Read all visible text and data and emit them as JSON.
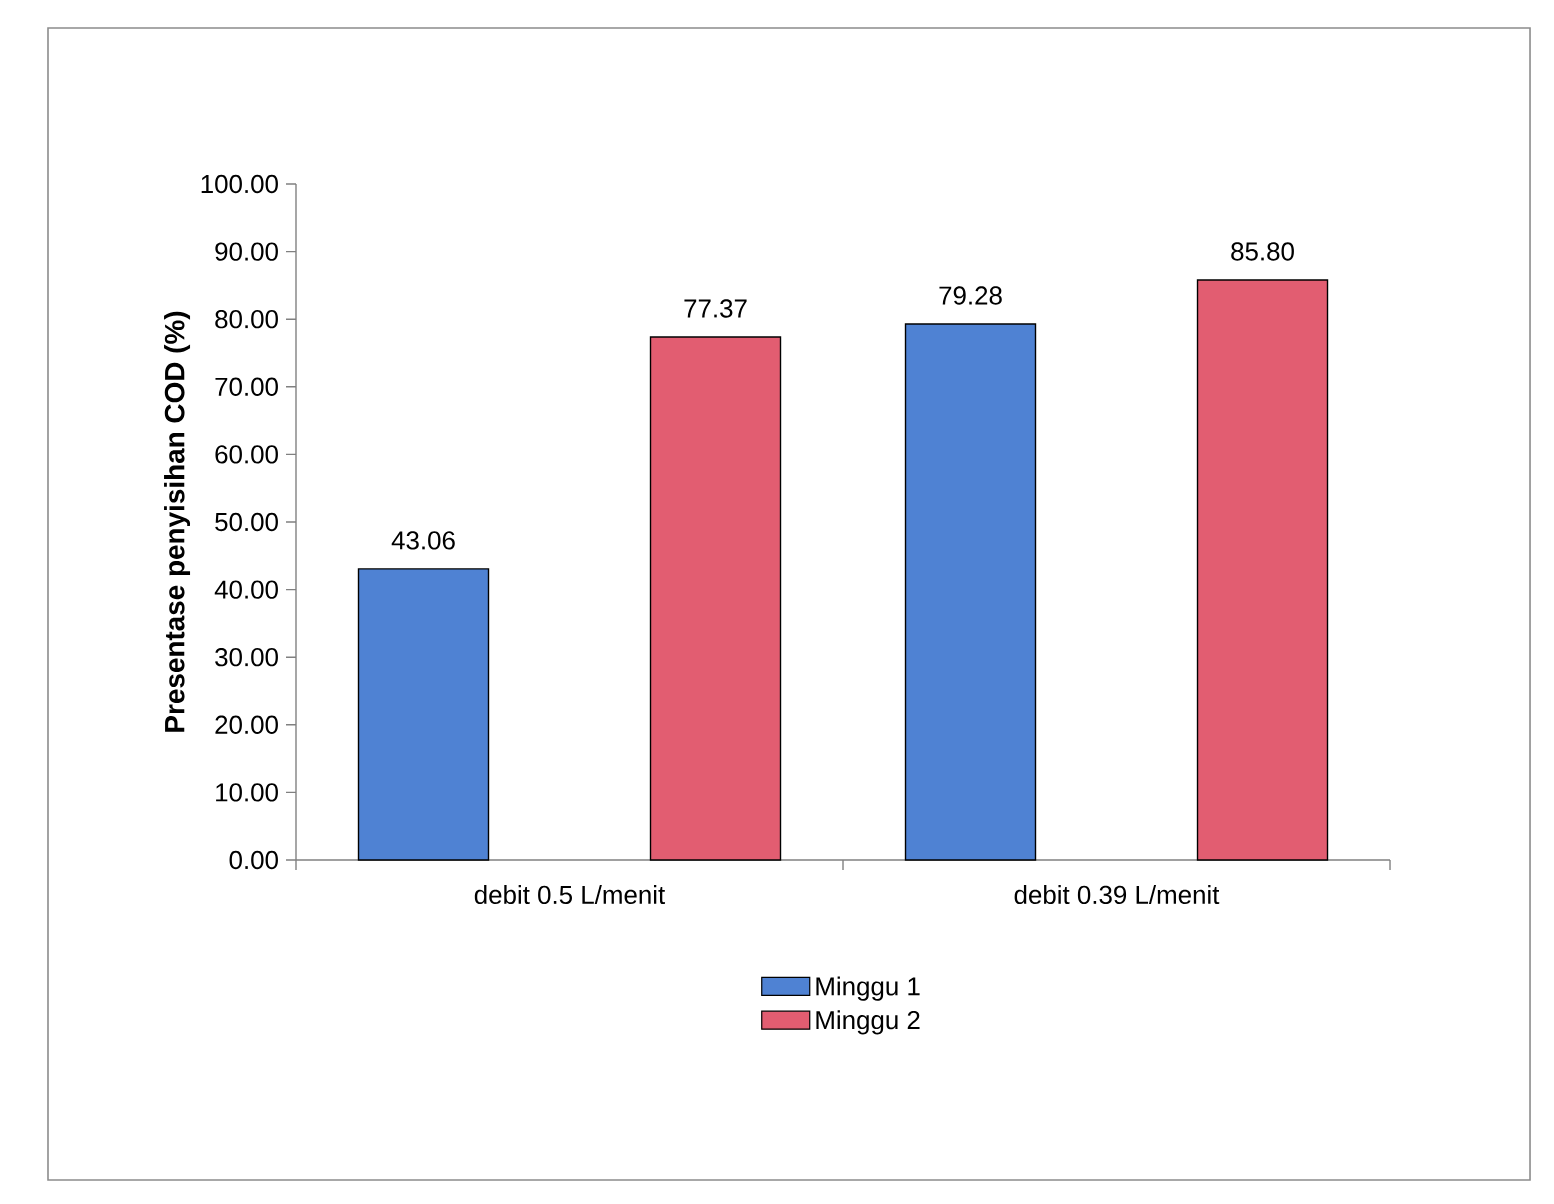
{
  "chart_data": {
    "type": "bar",
    "ylabel": "Presentase penyisihan COD (%)",
    "categories": [
      "debit 0.5 L/menit",
      "debit 0.39 L/menit"
    ],
    "series": [
      {
        "name": "Minggu 1",
        "color": "#4f82d3",
        "values": [
          43.06,
          79.28
        ],
        "value_labels": [
          "43.06",
          "79.28"
        ]
      },
      {
        "name": "Minggu 2",
        "color": "#e25d71",
        "values": [
          77.37,
          85.8
        ],
        "value_labels": [
          "77.37",
          "85.80"
        ]
      }
    ],
    "ylim": [
      0,
      100
    ],
    "yticks": [
      {
        "value": 0,
        "label": "0.00"
      },
      {
        "value": 10,
        "label": "10.00"
      },
      {
        "value": 20,
        "label": "20.00"
      },
      {
        "value": 30,
        "label": "30.00"
      },
      {
        "value": 40,
        "label": "40.00"
      },
      {
        "value": 50,
        "label": "50.00"
      },
      {
        "value": 60,
        "label": "60.00"
      },
      {
        "value": 70,
        "label": "70.00"
      },
      {
        "value": 80,
        "label": "80.00"
      },
      {
        "value": 90,
        "label": "90.00"
      },
      {
        "value": 100,
        "label": "100.00"
      }
    ],
    "legend": "bottom"
  }
}
